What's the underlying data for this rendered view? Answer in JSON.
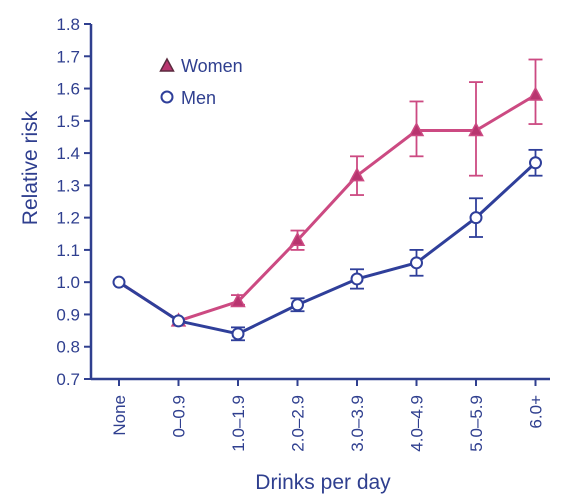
{
  "colors": {
    "axis": "#2f3f8f",
    "women": "#cc4a82",
    "men": "#2f3f9a",
    "women_marker_fill": "#b8356f"
  },
  "chart_data": {
    "type": "line",
    "categories": [
      "None",
      "0–0.9",
      "1.0–1.9",
      "2.0–2.9",
      "3.0–3.9",
      "4.0–4.9",
      "5.0–5.9",
      "6.0+"
    ],
    "xlabel": "Drinks per day",
    "ylabel": "Relative risk",
    "ylim": [
      0.7,
      1.8
    ],
    "yticks": [
      "0.7",
      "0.8",
      "0.9",
      "1.0",
      "1.1",
      "1.2",
      "1.3",
      "1.4",
      "1.5",
      "1.6",
      "1.7",
      "1.8"
    ],
    "grid": false,
    "legend_position": "top-left",
    "series": [
      {
        "name": "Women",
        "marker": "triangle",
        "values": [
          1.0,
          0.88,
          0.94,
          1.13,
          1.33,
          1.47,
          1.47,
          1.58
        ],
        "err_low": [
          1.0,
          0.87,
          0.93,
          1.1,
          1.27,
          1.39,
          1.33,
          1.49
        ],
        "err_high": [
          1.0,
          0.89,
          0.96,
          1.16,
          1.39,
          1.56,
          1.62,
          1.69
        ]
      },
      {
        "name": "Men",
        "marker": "circle",
        "values": [
          1.0,
          0.88,
          0.84,
          0.93,
          1.01,
          1.06,
          1.2,
          1.37
        ],
        "err_low": [
          1.0,
          0.87,
          0.82,
          0.91,
          0.98,
          1.02,
          1.14,
          1.33
        ],
        "err_high": [
          1.0,
          0.89,
          0.86,
          0.95,
          1.04,
          1.1,
          1.26,
          1.41
        ]
      }
    ]
  }
}
